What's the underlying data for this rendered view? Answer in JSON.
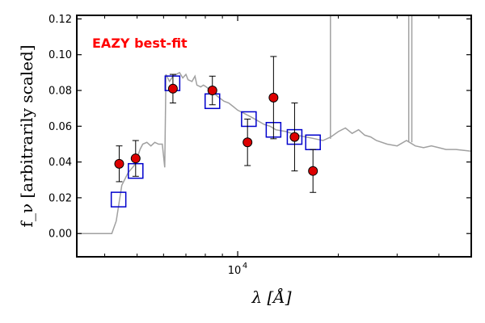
{
  "chart_data": {
    "type": "scatter",
    "x_scale": "log",
    "xlim": [
      3300,
      50000
    ],
    "ylim": [
      -0.013,
      0.122
    ],
    "xlabel": "λ [Å]",
    "ylabel": "f_ν [arbitrarily scaled]",
    "x_ticks": [
      {
        "value": 10000,
        "label": "10"
      }
    ],
    "x_tick_exponent": "4",
    "y_ticks": [
      0.0,
      0.02,
      0.04,
      0.06,
      0.08,
      0.1,
      0.12
    ],
    "y_tick_labels": [
      "0.00",
      "0.02",
      "0.04",
      "0.06",
      "0.08",
      "0.10",
      "0.12"
    ],
    "annotation": {
      "text": "EAZY best-fit",
      "color": "#ff0000"
    },
    "grid": false,
    "series": [
      {
        "type": "line",
        "color": "#a0a0a0",
        "points": [
          [
            3300,
            0.0
          ],
          [
            4200,
            0.0
          ],
          [
            4330,
            0.007
          ],
          [
            4500,
            0.027
          ],
          [
            4700,
            0.034
          ],
          [
            4900,
            0.038
          ],
          [
            5000,
            0.042
          ],
          [
            5100,
            0.047
          ],
          [
            5200,
            0.05
          ],
          [
            5350,
            0.051
          ],
          [
            5500,
            0.049
          ],
          [
            5650,
            0.051
          ],
          [
            5800,
            0.05
          ],
          [
            5950,
            0.05
          ],
          [
            6050,
            0.037
          ],
          [
            6100,
            0.089
          ],
          [
            6250,
            0.085
          ],
          [
            6400,
            0.088
          ],
          [
            6550,
            0.089
          ],
          [
            6700,
            0.09
          ],
          [
            6850,
            0.087
          ],
          [
            7000,
            0.089
          ],
          [
            7100,
            0.086
          ],
          [
            7300,
            0.085
          ],
          [
            7450,
            0.088
          ],
          [
            7550,
            0.083
          ],
          [
            7750,
            0.082
          ],
          [
            7900,
            0.083
          ],
          [
            8050,
            0.082
          ],
          [
            8300,
            0.08
          ],
          [
            8550,
            0.078
          ],
          [
            8800,
            0.076
          ],
          [
            9100,
            0.074
          ],
          [
            9400,
            0.073
          ],
          [
            9700,
            0.071
          ],
          [
            10000,
            0.069
          ],
          [
            10500,
            0.067
          ],
          [
            11000,
            0.065
          ],
          [
            11500,
            0.063
          ],
          [
            12000,
            0.061
          ],
          [
            12500,
            0.06
          ],
          [
            13000,
            0.058
          ],
          [
            14000,
            0.057
          ],
          [
            15000,
            0.055
          ],
          [
            16000,
            0.054
          ],
          [
            17000,
            0.053
          ],
          [
            18000,
            0.052
          ],
          [
            19000,
            0.054
          ],
          [
            20000,
            0.057
          ],
          [
            21000,
            0.059
          ],
          [
            22000,
            0.056
          ],
          [
            23000,
            0.058
          ],
          [
            24000,
            0.055
          ],
          [
            25000,
            0.054
          ],
          [
            26000,
            0.052
          ],
          [
            28000,
            0.05
          ],
          [
            30000,
            0.049
          ],
          [
            32000,
            0.052
          ],
          [
            34000,
            0.049
          ],
          [
            36000,
            0.048
          ],
          [
            38000,
            0.049
          ],
          [
            40000,
            0.048
          ],
          [
            42000,
            0.047
          ],
          [
            45000,
            0.047
          ],
          [
            50000,
            0.046
          ]
        ]
      },
      {
        "type": "squares",
        "color": "#0000cc",
        "points": [
          [
            4400,
            0.019
          ],
          [
            4950,
            0.035
          ],
          [
            6380,
            0.084
          ],
          [
            8400,
            0.074
          ],
          [
            10800,
            0.064
          ],
          [
            12800,
            0.058
          ],
          [
            14800,
            0.054
          ],
          [
            16800,
            0.051
          ]
        ]
      },
      {
        "type": "errorbar-points",
        "color": "#dd0000",
        "points": [
          {
            "x": 4420,
            "y": 0.039,
            "err": 0.01
          },
          {
            "x": 4950,
            "y": 0.042,
            "err": 0.01
          },
          {
            "x": 6400,
            "y": 0.081,
            "err": 0.008
          },
          {
            "x": 8400,
            "y": 0.08,
            "err": 0.008
          },
          {
            "x": 10700,
            "y": 0.051,
            "err": 0.013
          },
          {
            "x": 12800,
            "y": 0.076,
            "err": 0.023
          },
          {
            "x": 14800,
            "y": 0.054,
            "err": 0.019
          },
          {
            "x": 16800,
            "y": 0.035,
            "err": 0.012
          }
        ]
      }
    ]
  }
}
